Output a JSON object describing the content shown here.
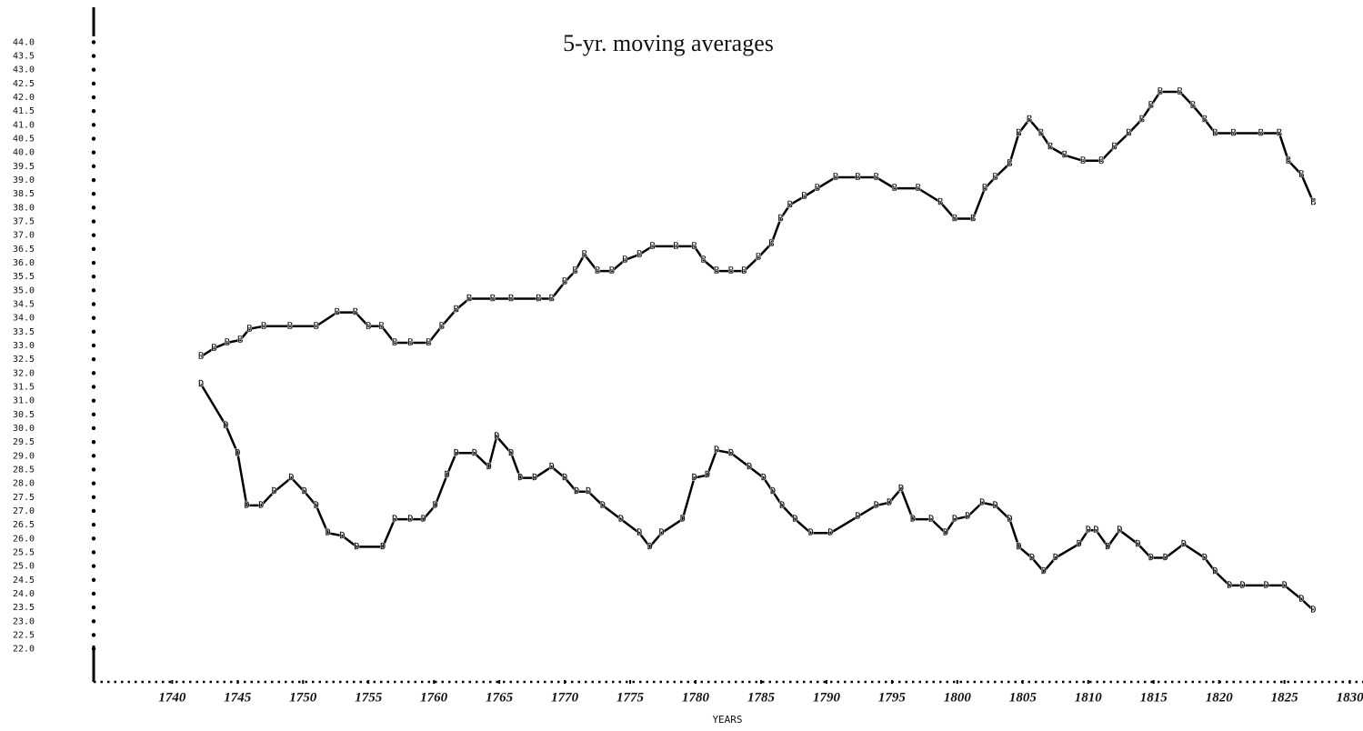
{
  "chart_data": {
    "type": "line",
    "title": "5-yr. moving averages",
    "x_label": "YEARS",
    "xlim": [
      1734,
      1831
    ],
    "ylim": [
      20.8,
      45.2
    ],
    "xticks": [
      1740,
      1745,
      1750,
      1755,
      1760,
      1765,
      1770,
      1775,
      1780,
      1785,
      1790,
      1795,
      1800,
      1805,
      1810,
      1815,
      1820,
      1825,
      1830
    ],
    "yticks": [
      {
        "value": 44,
        "label": "44.0"
      },
      {
        "value": 43.5,
        "label": "43.5"
      },
      {
        "value": 43,
        "label": "43.0"
      },
      {
        "value": 42.5,
        "label": "42.5"
      },
      {
        "value": 42,
        "label": "42.0"
      },
      {
        "value": 41.5,
        "label": "41.5"
      },
      {
        "value": 41,
        "label": "41.0"
      },
      {
        "value": 40.5,
        "label": "40.5"
      },
      {
        "value": 40,
        "label": "40.0"
      },
      {
        "value": 39.5,
        "label": "39.5"
      },
      {
        "value": 39,
        "label": "39.0"
      },
      {
        "value": 38.5,
        "label": "38.5"
      },
      {
        "value": 38,
        "label": "38.0"
      },
      {
        "value": 37.5,
        "label": "37.5"
      },
      {
        "value": 37,
        "label": "37.0"
      },
      {
        "value": 36.5,
        "label": "36.5"
      },
      {
        "value": 36,
        "label": "36.0"
      },
      {
        "value": 35.5,
        "label": "35.5"
      },
      {
        "value": 35,
        "label": "35.0"
      },
      {
        "value": 34.5,
        "label": "34.5"
      },
      {
        "value": 34,
        "label": "34.0"
      },
      {
        "value": 33.5,
        "label": "33.5"
      },
      {
        "value": 33,
        "label": "33.0"
      },
      {
        "value": 32.5,
        "label": "32.5"
      },
      {
        "value": 32,
        "label": "32.0"
      },
      {
        "value": 31.5,
        "label": "31.5"
      },
      {
        "value": 31,
        "label": "31.0"
      },
      {
        "value": 30.5,
        "label": "30.5"
      },
      {
        "value": 30,
        "label": "30.0"
      },
      {
        "value": 29.5,
        "label": "29.5"
      },
      {
        "value": 29,
        "label": "29.0"
      },
      {
        "value": 28.5,
        "label": "28.5"
      },
      {
        "value": 28,
        "label": "28.0"
      },
      {
        "value": 27.5,
        "label": "27.5"
      },
      {
        "value": 27,
        "label": "27.0"
      },
      {
        "value": 26.5,
        "label": "26.5"
      },
      {
        "value": 26,
        "label": "26.0"
      },
      {
        "value": 25.5,
        "label": "25.5"
      },
      {
        "value": 25,
        "label": "25.0"
      },
      {
        "value": 24.5,
        "label": "24.5"
      },
      {
        "value": 24,
        "label": "24.0"
      },
      {
        "value": 23.5,
        "label": "23.5"
      },
      {
        "value": 23,
        "label": "23.0"
      },
      {
        "value": 22.5,
        "label": "22.5"
      },
      {
        "value": 22,
        "label": "22.0"
      }
    ],
    "series": [
      {
        "name": "B",
        "color": "#000000",
        "x": [
          1742.2,
          1743.2,
          1744.2,
          1745.2,
          1745.9,
          1747,
          1749,
          1751,
          1752.6,
          1754,
          1755,
          1756,
          1757,
          1758.2,
          1759.6,
          1760.6,
          1761.7,
          1762.7,
          1764.5,
          1765.9,
          1768,
          1769,
          1770,
          1770.8,
          1771.5,
          1772.5,
          1773.6,
          1774.6,
          1775.7,
          1776.7,
          1778.5,
          1779.9,
          1780.6,
          1781.6,
          1782.7,
          1783.7,
          1784.8,
          1785.8,
          1786.5,
          1787.2,
          1788.3,
          1789.3,
          1790.7,
          1792.4,
          1793.8,
          1795.2,
          1797,
          1798.7,
          1799.8,
          1801.2,
          1802.1,
          1802.9,
          1804,
          1804.7,
          1805.5,
          1806.4,
          1807.1,
          1808.2,
          1809.6,
          1811,
          1812,
          1813.1,
          1814.1,
          1814.8,
          1815.5,
          1817,
          1818,
          1818.9,
          1819.7,
          1821.1,
          1823.2,
          1824.6,
          1825.3,
          1826.3,
          1827.2
        ],
        "values": [
          32.6,
          32.9,
          33.1,
          33.2,
          33.6,
          33.7,
          33.7,
          33.7,
          34.2,
          34.2,
          33.7,
          33.7,
          33.1,
          33.1,
          33.1,
          33.7,
          34.3,
          34.7,
          34.7,
          34.7,
          34.7,
          34.7,
          35.3,
          35.7,
          36.3,
          35.7,
          35.7,
          36.1,
          36.3,
          36.6,
          36.6,
          36.6,
          36.1,
          35.7,
          35.7,
          35.7,
          36.2,
          36.7,
          37.6,
          38.1,
          38.4,
          38.7,
          39.1,
          39.1,
          39.1,
          38.7,
          38.7,
          38.2,
          37.6,
          37.6,
          38.7,
          39.1,
          39.6,
          40.7,
          41.2,
          40.7,
          40.2,
          39.9,
          39.7,
          39.7,
          40.2,
          40.7,
          41.2,
          41.7,
          42.2,
          42.2,
          41.7,
          41.2,
          40.7,
          40.7,
          40.7,
          40.7,
          39.7,
          39.2,
          38.2
        ]
      },
      {
        "name": "D",
        "color": "#000000",
        "x": [
          1742.2,
          1744.1,
          1745,
          1745.7,
          1746.8,
          1747.8,
          1749.1,
          1750.1,
          1751,
          1751.9,
          1753,
          1754.1,
          1756.1,
          1757,
          1758.2,
          1759.2,
          1760.1,
          1761,
          1761.7,
          1763.1,
          1764.2,
          1764.8,
          1765.9,
          1766.6,
          1767.7,
          1769,
          1770,
          1770.9,
          1771.8,
          1772.9,
          1774.3,
          1775.7,
          1776.5,
          1777.4,
          1779,
          1779.9,
          1780.9,
          1781.6,
          1782.7,
          1784.1,
          1785.2,
          1785.9,
          1786.6,
          1787.6,
          1788.8,
          1790.3,
          1792.4,
          1793.8,
          1794.8,
          1795.7,
          1796.6,
          1798,
          1799.1,
          1799.8,
          1800.8,
          1801.9,
          1802.9,
          1804,
          1804.7,
          1805.7,
          1806.6,
          1807.5,
          1809.3,
          1810,
          1810.6,
          1811.5,
          1812.4,
          1813.8,
          1814.8,
          1815.9,
          1817.3,
          1818.9,
          1819.7,
          1820.8,
          1821.8,
          1823.6,
          1825,
          1826.3,
          1827.2
        ],
        "values": [
          31.6,
          30.1,
          29.1,
          27.2,
          27.2,
          27.7,
          28.2,
          27.7,
          27.2,
          26.2,
          26.1,
          25.7,
          25.7,
          26.7,
          26.7,
          26.7,
          27.2,
          28.3,
          29.1,
          29.1,
          28.6,
          29.7,
          29.1,
          28.2,
          28.2,
          28.6,
          28.2,
          27.7,
          27.7,
          27.2,
          26.7,
          26.2,
          25.7,
          26.2,
          26.7,
          28.2,
          28.3,
          29.2,
          29.1,
          28.6,
          28.2,
          27.7,
          27.2,
          26.7,
          26.2,
          26.2,
          26.8,
          27.2,
          27.3,
          27.8,
          26.7,
          26.7,
          26.2,
          26.7,
          26.8,
          27.3,
          27.2,
          26.7,
          25.7,
          25.3,
          24.8,
          25.3,
          25.8,
          26.3,
          26.3,
          25.7,
          26.3,
          25.8,
          25.3,
          25.3,
          25.8,
          25.3,
          24.8,
          24.3,
          24.3,
          24.3,
          24.3,
          23.8,
          23.4
        ]
      }
    ]
  }
}
